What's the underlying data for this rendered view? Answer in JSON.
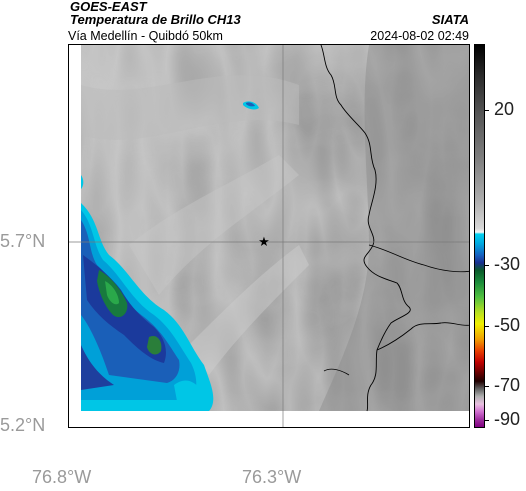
{
  "header": {
    "satellite": "GOES-EAST",
    "product": "Temperatura de Brillo CH13",
    "organization": "SIATA",
    "road": "Vía Medellín - Quibdó 50km",
    "datetime": "2024-08-02 02:49"
  },
  "axes": {
    "lat_labels": [
      "5.7°N",
      "5.2°N"
    ],
    "lon_labels": [
      "76.8°W",
      "76.3°W"
    ]
  },
  "colorbar": {
    "ticks": [
      "20",
      "-30",
      "-50",
      "-70",
      "-90"
    ],
    "units_hint": "°C"
  },
  "marker": {
    "symbol": "★",
    "name": "star-marker"
  }
}
